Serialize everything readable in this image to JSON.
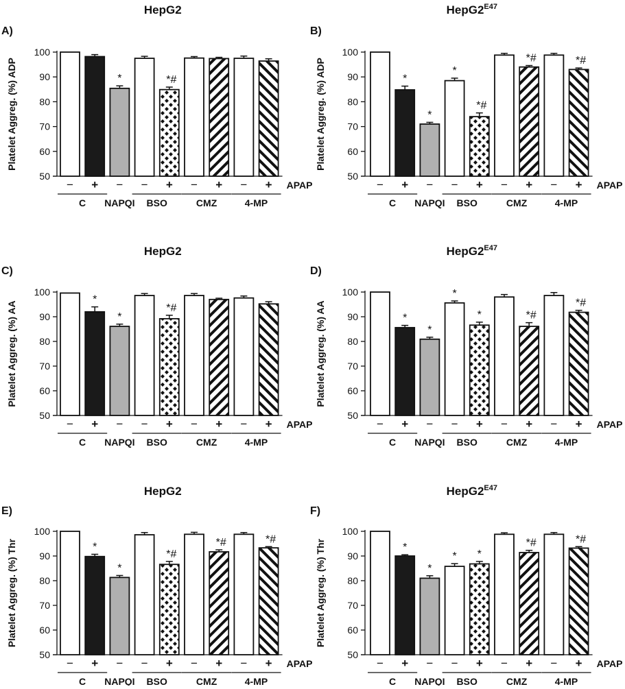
{
  "chart_data": [
    {
      "type": "bar",
      "panel": "A)",
      "title": "HepG2",
      "title_sup": "",
      "ylabel": "Platelet Aggreg. (%) ADP",
      "ylim": [
        50,
        100
      ],
      "yticks": [
        "50",
        "60",
        "70",
        "80",
        "90",
        "100"
      ],
      "bars": [
        {
          "value": 100,
          "err": 0,
          "pattern": "white",
          "sign": "−",
          "label": ""
        },
        {
          "value": 98.2,
          "err": 0.8,
          "pattern": "black",
          "sign": "+",
          "label": ""
        },
        {
          "value": 85.4,
          "err": 1.0,
          "pattern": "grey",
          "sign": "−",
          "label": "*"
        },
        {
          "value": 97.5,
          "err": 0.8,
          "pattern": "white",
          "sign": "−",
          "label": ""
        },
        {
          "value": 84.9,
          "err": 1.0,
          "pattern": "dots",
          "sign": "+",
          "label": "*#"
        },
        {
          "value": 97.6,
          "err": 0.6,
          "pattern": "white",
          "sign": "−",
          "label": ""
        },
        {
          "value": 97.4,
          "err": 0.5,
          "pattern": "hatch",
          "sign": "+",
          "label": ""
        },
        {
          "value": 97.5,
          "err": 0.9,
          "pattern": "white",
          "sign": "−",
          "label": ""
        },
        {
          "value": 96.4,
          "err": 0.9,
          "pattern": "hatch2",
          "sign": "+",
          "label": ""
        }
      ],
      "treatment": "APAP",
      "groups": [
        "C",
        "NAPQI",
        "BSO",
        "CMZ",
        "4-MP"
      ]
    },
    {
      "type": "bar",
      "panel": "B)",
      "title": "HepG2",
      "title_sup": "E47",
      "ylabel": "Platelet Aggreg. (%) ADP",
      "ylim": [
        50,
        100
      ],
      "yticks": [
        "50",
        "60",
        "70",
        "80",
        "90",
        "100"
      ],
      "bars": [
        {
          "value": 100,
          "err": 0,
          "pattern": "white",
          "sign": "−",
          "label": ""
        },
        {
          "value": 84.8,
          "err": 1.5,
          "pattern": "black",
          "sign": "+",
          "label": "*"
        },
        {
          "value": 71.0,
          "err": 0.7,
          "pattern": "grey",
          "sign": "−",
          "label": "*"
        },
        {
          "value": 88.5,
          "err": 1.0,
          "pattern": "white",
          "sign": "−",
          "label": "*"
        },
        {
          "value": 74.0,
          "err": 1.5,
          "pattern": "dots",
          "sign": "+",
          "label": "*#"
        },
        {
          "value": 98.8,
          "err": 0.7,
          "pattern": "white",
          "sign": "−",
          "label": ""
        },
        {
          "value": 94.0,
          "err": 0.6,
          "pattern": "hatch",
          "sign": "+",
          "label": "*#"
        },
        {
          "value": 98.8,
          "err": 0.7,
          "pattern": "white",
          "sign": "−",
          "label": ""
        },
        {
          "value": 93.0,
          "err": 0.6,
          "pattern": "hatch2",
          "sign": "+",
          "label": "*#"
        }
      ],
      "treatment": "APAP",
      "groups": [
        "C",
        "NAPQI",
        "BSO",
        "CMZ",
        "4-MP"
      ]
    },
    {
      "type": "bar",
      "panel": "C)",
      "title": "HepG2",
      "title_sup": "",
      "ylabel": "Platelet Aggreg. (%) AA",
      "ylim": [
        50,
        100
      ],
      "yticks": [
        "50",
        "60",
        "70",
        "80",
        "90",
        "100"
      ],
      "bars": [
        {
          "value": 99.6,
          "err": 0,
          "pattern": "white",
          "sign": "−",
          "label": ""
        },
        {
          "value": 92.0,
          "err": 2.0,
          "pattern": "black",
          "sign": "+",
          "label": "*"
        },
        {
          "value": 86.1,
          "err": 0.9,
          "pattern": "grey",
          "sign": "−",
          "label": "*"
        },
        {
          "value": 98.6,
          "err": 0.8,
          "pattern": "white",
          "sign": "−",
          "label": ""
        },
        {
          "value": 89.2,
          "err": 1.4,
          "pattern": "dots",
          "sign": "+",
          "label": "*#"
        },
        {
          "value": 98.6,
          "err": 0.8,
          "pattern": "white",
          "sign": "−",
          "label": ""
        },
        {
          "value": 97.0,
          "err": 0.5,
          "pattern": "hatch",
          "sign": "+",
          "label": ""
        },
        {
          "value": 97.6,
          "err": 0.8,
          "pattern": "white",
          "sign": "−",
          "label": ""
        },
        {
          "value": 95.2,
          "err": 0.9,
          "pattern": "hatch2",
          "sign": "+",
          "label": ""
        }
      ],
      "treatment": "APAP",
      "groups": [
        "C",
        "NAPQI",
        "BSO",
        "CMZ",
        "4-MP"
      ]
    },
    {
      "type": "bar",
      "panel": "D)",
      "title": "HepG2",
      "title_sup": "E47",
      "ylabel": "Platelet Aggreg. (%) AA",
      "ylim": [
        50,
        100
      ],
      "yticks": [
        "50",
        "60",
        "70",
        "80",
        "90",
        "100"
      ],
      "bars": [
        {
          "value": 100,
          "err": 0,
          "pattern": "white",
          "sign": "−",
          "label": ""
        },
        {
          "value": 85.6,
          "err": 0.9,
          "pattern": "black",
          "sign": "+",
          "label": "*"
        },
        {
          "value": 80.9,
          "err": 0.8,
          "pattern": "grey",
          "sign": "−",
          "label": "*"
        },
        {
          "value": 95.6,
          "err": 0.8,
          "pattern": "white",
          "sign": "−",
          "label": "*"
        },
        {
          "value": 86.6,
          "err": 1.2,
          "pattern": "dots",
          "sign": "+",
          "label": "*"
        },
        {
          "value": 98.0,
          "err": 1.0,
          "pattern": "white",
          "sign": "−",
          "label": ""
        },
        {
          "value": 86.1,
          "err": 1.5,
          "pattern": "hatch",
          "sign": "+",
          "label": "*#"
        },
        {
          "value": 98.6,
          "err": 1.2,
          "pattern": "white",
          "sign": "−",
          "label": ""
        },
        {
          "value": 91.8,
          "err": 0.8,
          "pattern": "hatch2",
          "sign": "+",
          "label": "*#"
        }
      ],
      "treatment": "APAP",
      "groups": [
        "C",
        "NAPQI",
        "BSO",
        "CMZ",
        "4-MP"
      ]
    },
    {
      "type": "bar",
      "panel": "E)",
      "title": "HepG2",
      "title_sup": "",
      "ylabel": "Platelet Aggreg. (%) Thr",
      "ylim": [
        50,
        100
      ],
      "yticks": [
        "50",
        "60",
        "70",
        "80",
        "90",
        "100"
      ],
      "bars": [
        {
          "value": 100,
          "err": 0,
          "pattern": "white",
          "sign": "−",
          "label": ""
        },
        {
          "value": 89.8,
          "err": 0.9,
          "pattern": "black",
          "sign": "+",
          "label": "*"
        },
        {
          "value": 81.3,
          "err": 0.8,
          "pattern": "grey",
          "sign": "−",
          "label": "*"
        },
        {
          "value": 98.6,
          "err": 0.9,
          "pattern": "white",
          "sign": "−",
          "label": ""
        },
        {
          "value": 86.6,
          "err": 1.2,
          "pattern": "dots",
          "sign": "+",
          "label": "*#"
        },
        {
          "value": 98.8,
          "err": 0.8,
          "pattern": "white",
          "sign": "−",
          "label": ""
        },
        {
          "value": 91.7,
          "err": 0.8,
          "pattern": "hatch",
          "sign": "+",
          "label": "*#"
        },
        {
          "value": 98.8,
          "err": 0.7,
          "pattern": "white",
          "sign": "−",
          "label": ""
        },
        {
          "value": 93.3,
          "err": 0.5,
          "pattern": "hatch2",
          "sign": "+",
          "label": "*#"
        }
      ],
      "treatment": "APAP",
      "groups": [
        "C",
        "NAPQI",
        "BSO",
        "CMZ",
        "4-MP"
      ]
    },
    {
      "type": "bar",
      "panel": "F)",
      "title": "HepG2",
      "title_sup": "E47",
      "ylabel": "Platelet Aggreg. (%) Thr",
      "ylim": [
        50,
        100
      ],
      "yticks": [
        "50",
        "60",
        "70",
        "80",
        "90",
        "100"
      ],
      "bars": [
        {
          "value": 100,
          "err": 0,
          "pattern": "white",
          "sign": "−",
          "label": ""
        },
        {
          "value": 90.0,
          "err": 0.5,
          "pattern": "black",
          "sign": "+",
          "label": "*"
        },
        {
          "value": 81.0,
          "err": 1.0,
          "pattern": "grey",
          "sign": "−",
          "label": "*"
        },
        {
          "value": 85.8,
          "err": 1.1,
          "pattern": "white",
          "sign": "−",
          "label": "*"
        },
        {
          "value": 86.8,
          "err": 1.0,
          "pattern": "dots",
          "sign": "+",
          "label": "*"
        },
        {
          "value": 98.8,
          "err": 0.6,
          "pattern": "white",
          "sign": "−",
          "label": ""
        },
        {
          "value": 91.4,
          "err": 0.9,
          "pattern": "hatch",
          "sign": "+",
          "label": "*#"
        },
        {
          "value": 98.8,
          "err": 0.7,
          "pattern": "white",
          "sign": "−",
          "label": ""
        },
        {
          "value": 93.2,
          "err": 0.6,
          "pattern": "hatch2",
          "sign": "+",
          "label": "*#"
        }
      ],
      "treatment": "APAP",
      "groups": [
        "C",
        "NAPQI",
        "BSO",
        "CMZ",
        "4-MP"
      ]
    }
  ]
}
